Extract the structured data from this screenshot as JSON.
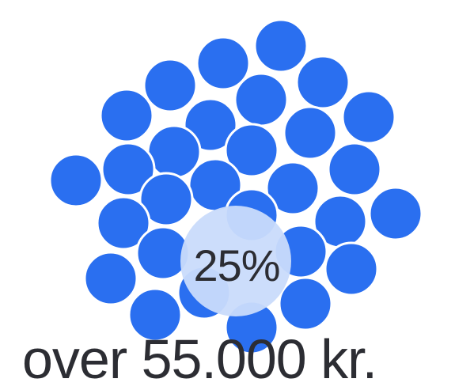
{
  "infographic": {
    "percent_text": "25%",
    "caption_text": "over 55.000 kr.",
    "dot_color": "#2a6ff0",
    "highlight_color": "#c9dbfb",
    "text_color": "#2c2d33"
  }
}
